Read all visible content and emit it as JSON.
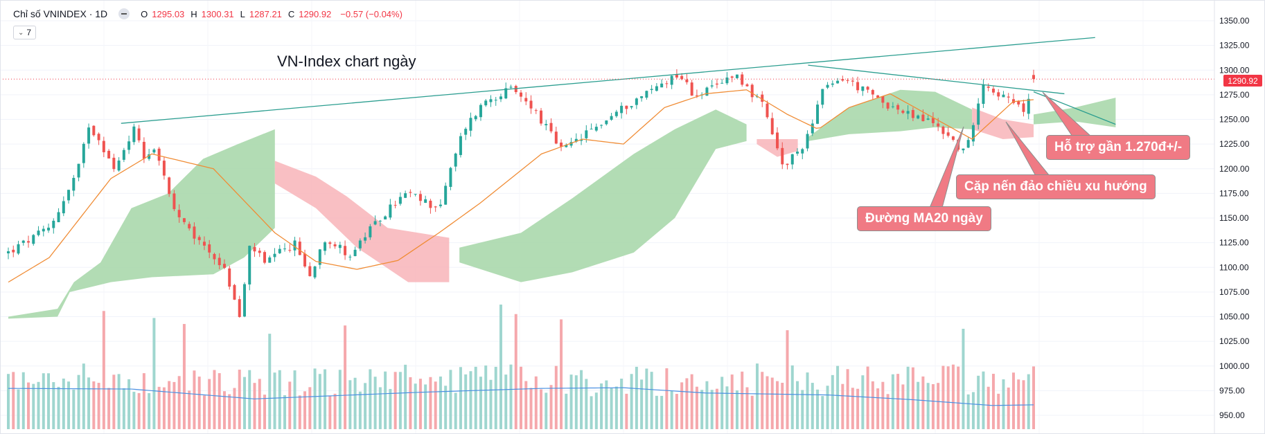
{
  "legend": {
    "symbol": "Chỉ số VNINDEX · 1D",
    "open_label": "O",
    "open": "1295.03",
    "high_label": "H",
    "high": "1300.31",
    "low_label": "L",
    "low": "1287.21",
    "close_label": "C",
    "close": "1290.92",
    "change": "−0.57 (−0.04%)"
  },
  "indicator_count": "7",
  "colors": {
    "up": "#26a69a",
    "down": "#ef5350",
    "vol_up": "#9fd6cf",
    "vol_down": "#f5a8ac",
    "ma": "#f08c35",
    "vol_ma": "#4a90e2",
    "cloud_up": "#a5d6a7",
    "cloud_down": "#f8b4b8",
    "trend": "#2a9d8f",
    "price_line": "#f23645"
  },
  "chart_data": {
    "type": "candlestick",
    "title": "VN-Index chart ngày",
    "timeframe": "1D",
    "ylim": [
      950,
      1350
    ],
    "yticks": [
      "1350.00",
      "1325.00",
      "1300.00",
      "1275.00",
      "1250.00",
      "1225.00",
      "1200.00",
      "1175.00",
      "1150.00",
      "1125.00",
      "1100.00",
      "1075.00",
      "1050.00",
      "1025.00",
      "1000.00",
      "975.00",
      "950.00"
    ],
    "last_price": "1290.92",
    "ohlc_last": {
      "open": 1295.03,
      "high": 1300.31,
      "low": 1287.21,
      "close": 1290.92
    },
    "num_sessions": 205,
    "close_anchors": [
      [
        0,
        1115
      ],
      [
        9,
        1126
      ],
      [
        20,
        1140
      ],
      [
        30,
        1180
      ],
      [
        35,
        1205
      ],
      [
        39,
        1245
      ],
      [
        45,
        1228
      ],
      [
        52,
        1196
      ],
      [
        57,
        1224
      ],
      [
        62,
        1243
      ],
      [
        66,
        1213
      ],
      [
        72,
        1222
      ],
      [
        80,
        1160
      ],
      [
        88,
        1136
      ],
      [
        99,
        1115
      ],
      [
        106,
        1095
      ],
      [
        113,
        1048
      ],
      [
        118,
        1125
      ],
      [
        125,
        1103
      ],
      [
        131,
        1113
      ],
      [
        140,
        1124
      ],
      [
        147,
        1090
      ],
      [
        154,
        1130
      ],
      [
        160,
        1122
      ],
      [
        167,
        1112
      ],
      [
        174,
        1132
      ],
      [
        187,
        1162
      ],
      [
        194,
        1175
      ],
      [
        210,
        1160
      ],
      [
        222,
        1240
      ],
      [
        233,
        1270
      ],
      [
        245,
        1280
      ],
      [
        255,
        1264
      ],
      [
        270,
        1218
      ],
      [
        285,
        1240
      ],
      [
        300,
        1262
      ],
      [
        315,
        1282
      ],
      [
        327,
        1297
      ],
      [
        334,
        1275
      ],
      [
        345,
        1282
      ],
      [
        354,
        1298
      ],
      [
        368,
        1263
      ],
      [
        378,
        1200
      ],
      [
        388,
        1225
      ],
      [
        397,
        1278
      ],
      [
        407,
        1292
      ],
      [
        422,
        1273
      ],
      [
        437,
        1256
      ],
      [
        452,
        1246
      ],
      [
        467,
        1215
      ],
      [
        475,
        1288
      ],
      [
        487,
        1270
      ],
      [
        496,
        1258
      ],
      [
        500,
        1292
      ]
    ],
    "ma20_anchors": [
      [
        0,
        1085
      ],
      [
        20,
        1110
      ],
      [
        50,
        1190
      ],
      [
        70,
        1215
      ],
      [
        100,
        1200
      ],
      [
        130,
        1135
      ],
      [
        150,
        1106
      ],
      [
        170,
        1098
      ],
      [
        190,
        1107
      ],
      [
        210,
        1135
      ],
      [
        230,
        1165
      ],
      [
        260,
        1215
      ],
      [
        280,
        1230
      ],
      [
        300,
        1225
      ],
      [
        320,
        1262
      ],
      [
        340,
        1276
      ],
      [
        360,
        1280
      ],
      [
        380,
        1255
      ],
      [
        395,
        1240
      ],
      [
        410,
        1262
      ],
      [
        430,
        1276
      ],
      [
        450,
        1253
      ],
      [
        470,
        1230
      ],
      [
        490,
        1268
      ],
      [
        500,
        1270
      ]
    ],
    "volume_ma_anchors": [
      [
        0,
        0.62
      ],
      [
        60,
        0.61
      ],
      [
        120,
        0.46
      ],
      [
        200,
        0.56
      ],
      [
        260,
        0.62
      ],
      [
        300,
        0.63
      ],
      [
        340,
        0.55
      ],
      [
        400,
        0.52
      ],
      [
        440,
        0.45
      ],
      [
        480,
        0.36
      ],
      [
        500,
        0.37
      ]
    ],
    "cloud_segments": [
      {
        "type": "up",
        "top": [
          [
            0,
            1050
          ],
          [
            24,
            1058
          ],
          [
            32,
            1085
          ],
          [
            45,
            1105
          ],
          [
            60,
            1160
          ],
          [
            78,
            1175
          ],
          [
            95,
            1210
          ],
          [
            112,
            1225
          ],
          [
            130,
            1240
          ]
        ],
        "bottom": [
          [
            0,
            1048
          ],
          [
            24,
            1050
          ],
          [
            30,
            1075
          ],
          [
            50,
            1085
          ],
          [
            70,
            1090
          ],
          [
            100,
            1093
          ],
          [
            115,
            1110
          ],
          [
            130,
            1140
          ]
        ]
      },
      {
        "type": "down",
        "top": [
          [
            130,
            1208
          ],
          [
            150,
            1192
          ],
          [
            165,
            1172
          ],
          [
            185,
            1140
          ],
          [
            215,
            1130
          ]
        ],
        "bottom": [
          [
            130,
            1185
          ],
          [
            150,
            1160
          ],
          [
            170,
            1120
          ],
          [
            195,
            1085
          ],
          [
            215,
            1085
          ]
        ]
      },
      {
        "type": "up",
        "top": [
          [
            220,
            1120
          ],
          [
            250,
            1135
          ],
          [
            275,
            1170
          ],
          [
            305,
            1215
          ],
          [
            325,
            1240
          ],
          [
            345,
            1260
          ],
          [
            360,
            1245
          ]
        ],
        "bottom": [
          [
            220,
            1105
          ],
          [
            250,
            1085
          ],
          [
            275,
            1095
          ],
          [
            305,
            1115
          ],
          [
            325,
            1150
          ],
          [
            345,
            1220
          ],
          [
            360,
            1228
          ]
        ]
      },
      {
        "type": "down",
        "top": [
          [
            365,
            1230
          ],
          [
            385,
            1230
          ]
        ],
        "bottom": [
          [
            365,
            1225
          ],
          [
            375,
            1212
          ],
          [
            385,
            1218
          ]
        ]
      },
      {
        "type": "up",
        "top": [
          [
            390,
            1232
          ],
          [
            410,
            1262
          ],
          [
            435,
            1280
          ],
          [
            452,
            1278
          ],
          [
            470,
            1260
          ]
        ],
        "bottom": [
          [
            390,
            1228
          ],
          [
            410,
            1235
          ],
          [
            435,
            1238
          ],
          [
            452,
            1242
          ],
          [
            470,
            1240
          ]
        ]
      },
      {
        "type": "down",
        "top": [
          [
            470,
            1262
          ],
          [
            485,
            1250
          ],
          [
            500,
            1245
          ]
        ],
        "bottom": [
          [
            470,
            1240
          ],
          [
            485,
            1230
          ],
          [
            500,
            1232
          ]
        ]
      },
      {
        "type": "up",
        "top": [
          [
            500,
            1255
          ],
          [
            520,
            1262
          ],
          [
            540,
            1272
          ]
        ],
        "bottom": [
          [
            500,
            1245
          ],
          [
            520,
            1248
          ],
          [
            540,
            1242
          ]
        ]
      }
    ],
    "trendlines": [
      {
        "name": "upper-resistance",
        "from": [
          55,
          1246
        ],
        "to": [
          530,
          1333
        ]
      },
      {
        "name": "descending-resistance",
        "from": [
          390,
          1305
        ],
        "to": [
          515,
          1276
        ]
      },
      {
        "name": "support-1270",
        "from": [
          500,
          1278
        ],
        "to": [
          540,
          1245
        ]
      }
    ],
    "annotations": [
      {
        "name": "support-callout",
        "text": "Hỗ trợ gần 1.270đ+/-"
      },
      {
        "name": "reversal-callout",
        "text": "Cặp nến đảo chiều xu hướng"
      },
      {
        "name": "ma20-callout",
        "text": "Đường MA20 ngày"
      }
    ]
  }
}
